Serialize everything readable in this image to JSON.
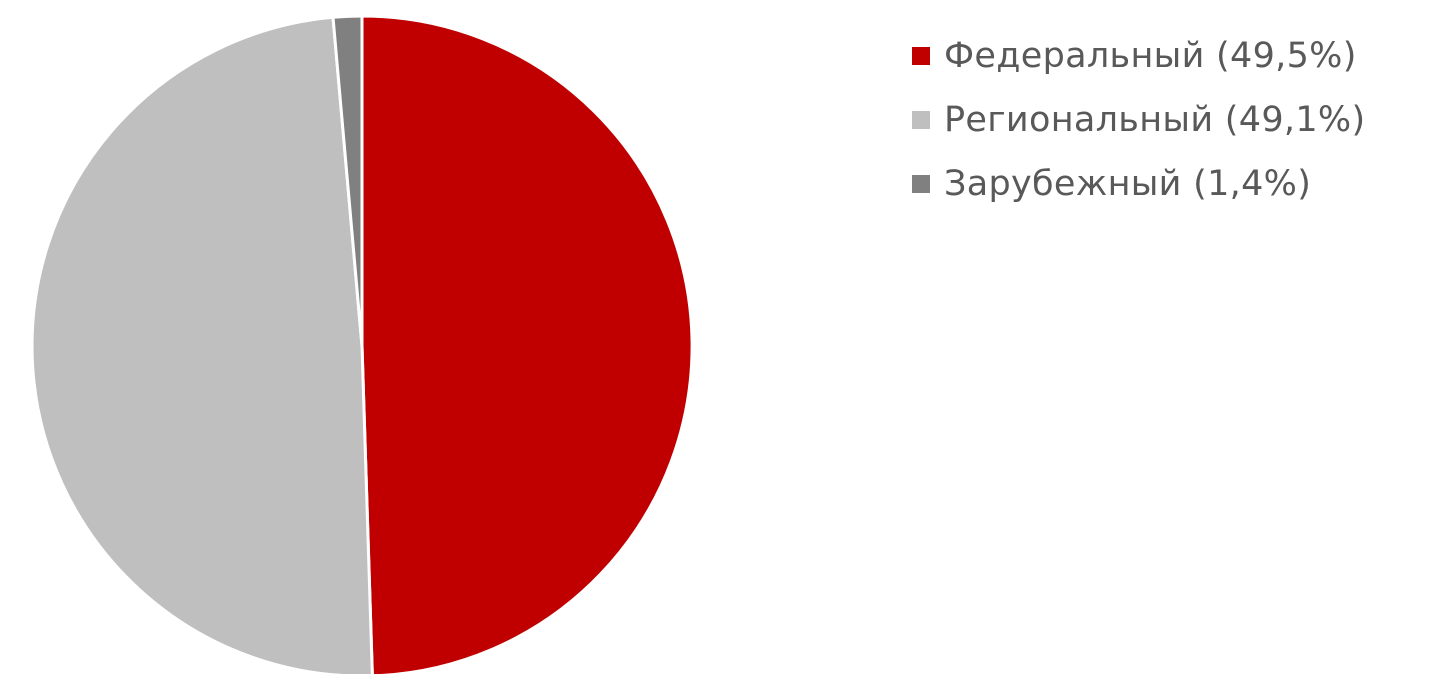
{
  "chart_data": {
    "type": "pie",
    "title": "",
    "legend_position": "top-right",
    "start_angle_deg": 0,
    "direction": "clockwise",
    "slices": [
      {
        "name": "Федеральный",
        "value": 49.5,
        "label": "Федеральный (49,5%)",
        "color": "#C00000"
      },
      {
        "name": "Региональный",
        "value": 49.1,
        "label": "Региональный (49,1%)",
        "color": "#BFBFBF"
      },
      {
        "name": "Зарубежный",
        "value": 1.4,
        "label": "Зарубежный (1,4%)",
        "color": "#808080"
      }
    ]
  }
}
